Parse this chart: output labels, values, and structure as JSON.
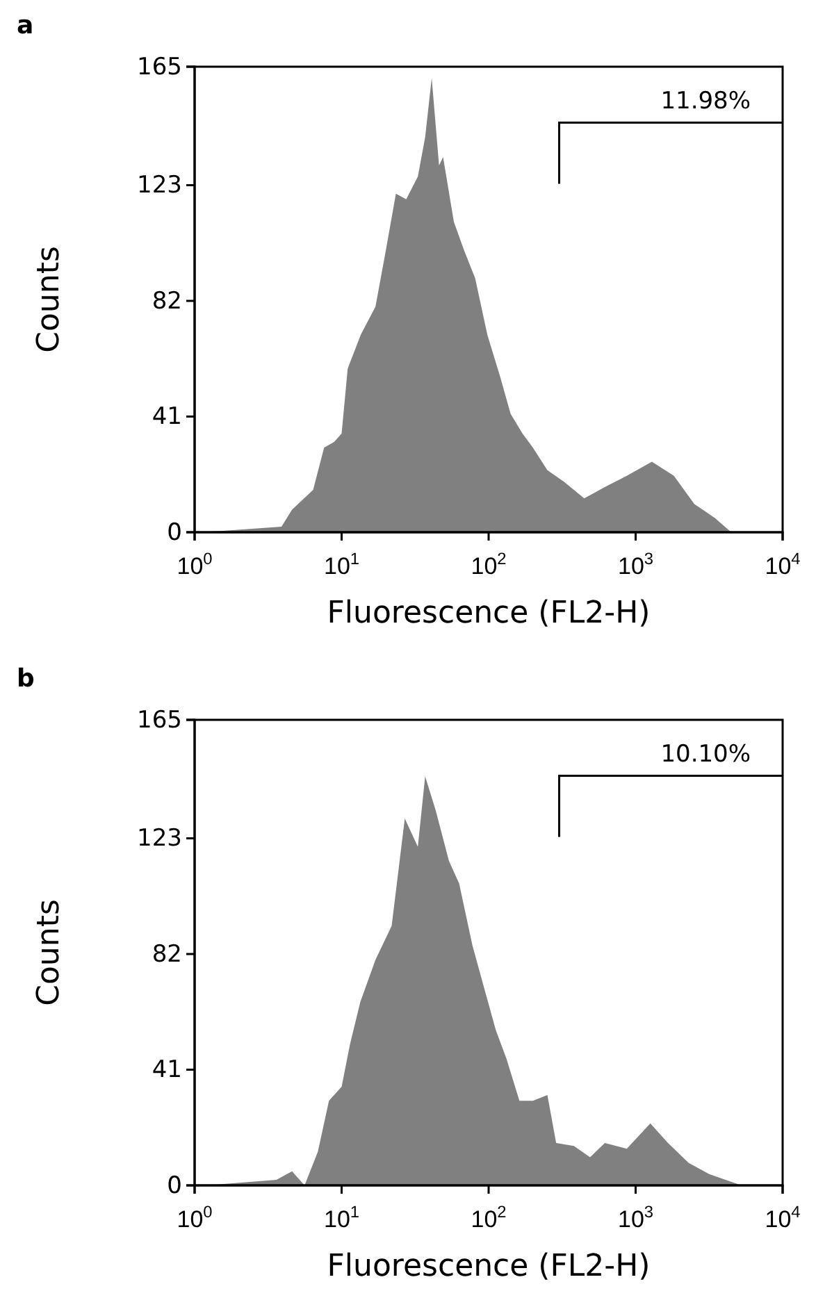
{
  "chart_data": [
    {
      "type": "area",
      "title": "a",
      "xlabel": "Fluorescence (FL2-H)",
      "ylabel": "Counts",
      "log": "x",
      "color": "#808080",
      "x": [
        1.15,
        3.9,
        4.6,
        6.4,
        7.6,
        8.9,
        10,
        11,
        13.5,
        17,
        20,
        23.4,
        27.5,
        33,
        37,
        41,
        46,
        49,
        58,
        68,
        81,
        98,
        120,
        141,
        170,
        200,
        251,
        324,
        447,
        617,
        871,
        1290,
        1820,
        2510,
        3470,
        4470
      ],
      "values": [
        0,
        2,
        8,
        15,
        30,
        32,
        35,
        58,
        70,
        80,
        100,
        120,
        118,
        126,
        140,
        161,
        130,
        133,
        110,
        100,
        90,
        70,
        55,
        42,
        35,
        30,
        22,
        18,
        12,
        16,
        20,
        25,
        20,
        10,
        5,
        0
      ],
      "xlim": [
        1,
        10000
      ],
      "xticks": [
        {
          "value": 1,
          "label": "10$^{0}$"
        },
        {
          "value": 10,
          "label": "10$^{1}$"
        },
        {
          "value": 100,
          "label": "10$^{2}$"
        },
        {
          "value": 1000,
          "label": "10$^{3}$"
        },
        {
          "value": 10000,
          "label": "10$^{4}$"
        }
      ],
      "ylim": [
        0,
        165
      ],
      "yticks": [
        0,
        41,
        82,
        123,
        165
      ],
      "annotations": [
        "11.98%"
      ]
    },
    {
      "type": "area",
      "title": "b",
      "xlabel": "Fluorescence (FL2-H)",
      "ylabel": "Counts",
      "log": "x",
      "color": "#808080",
      "x": [
        1.2,
        3.6,
        4.6,
        5.6,
        6.9,
        8.2,
        10,
        11.4,
        13.4,
        17,
        21.9,
        26.9,
        33,
        37,
        43.6,
        53.7,
        63,
        77.6,
        95.5,
        112,
        132,
        162,
        200,
        251,
        288,
        380,
        490,
        617,
        871,
        1259,
        1660,
        2290,
        3162,
        5250
      ],
      "values": [
        0,
        2,
        5,
        0,
        12,
        30,
        35,
        50,
        65,
        80,
        92,
        130,
        120,
        145,
        133,
        115,
        107,
        85,
        68,
        55,
        45,
        30,
        30,
        32,
        15,
        14,
        10,
        15,
        13,
        22,
        15,
        8,
        4,
        0
      ],
      "xlim": [
        1,
        10000
      ],
      "xticks": [
        {
          "value": 1,
          "label": "10$^{0}$"
        },
        {
          "value": 10,
          "label": "10$^{1}$"
        },
        {
          "value": 100,
          "label": "10$^{2}$"
        },
        {
          "value": 1000,
          "label": "10$^{3}$"
        },
        {
          "value": 10000,
          "label": "10$^{4}$"
        }
      ],
      "ylim": [
        0,
        165
      ],
      "yticks": [
        0,
        41,
        82,
        123,
        165
      ],
      "annotations": [
        "10.10%"
      ]
    }
  ]
}
